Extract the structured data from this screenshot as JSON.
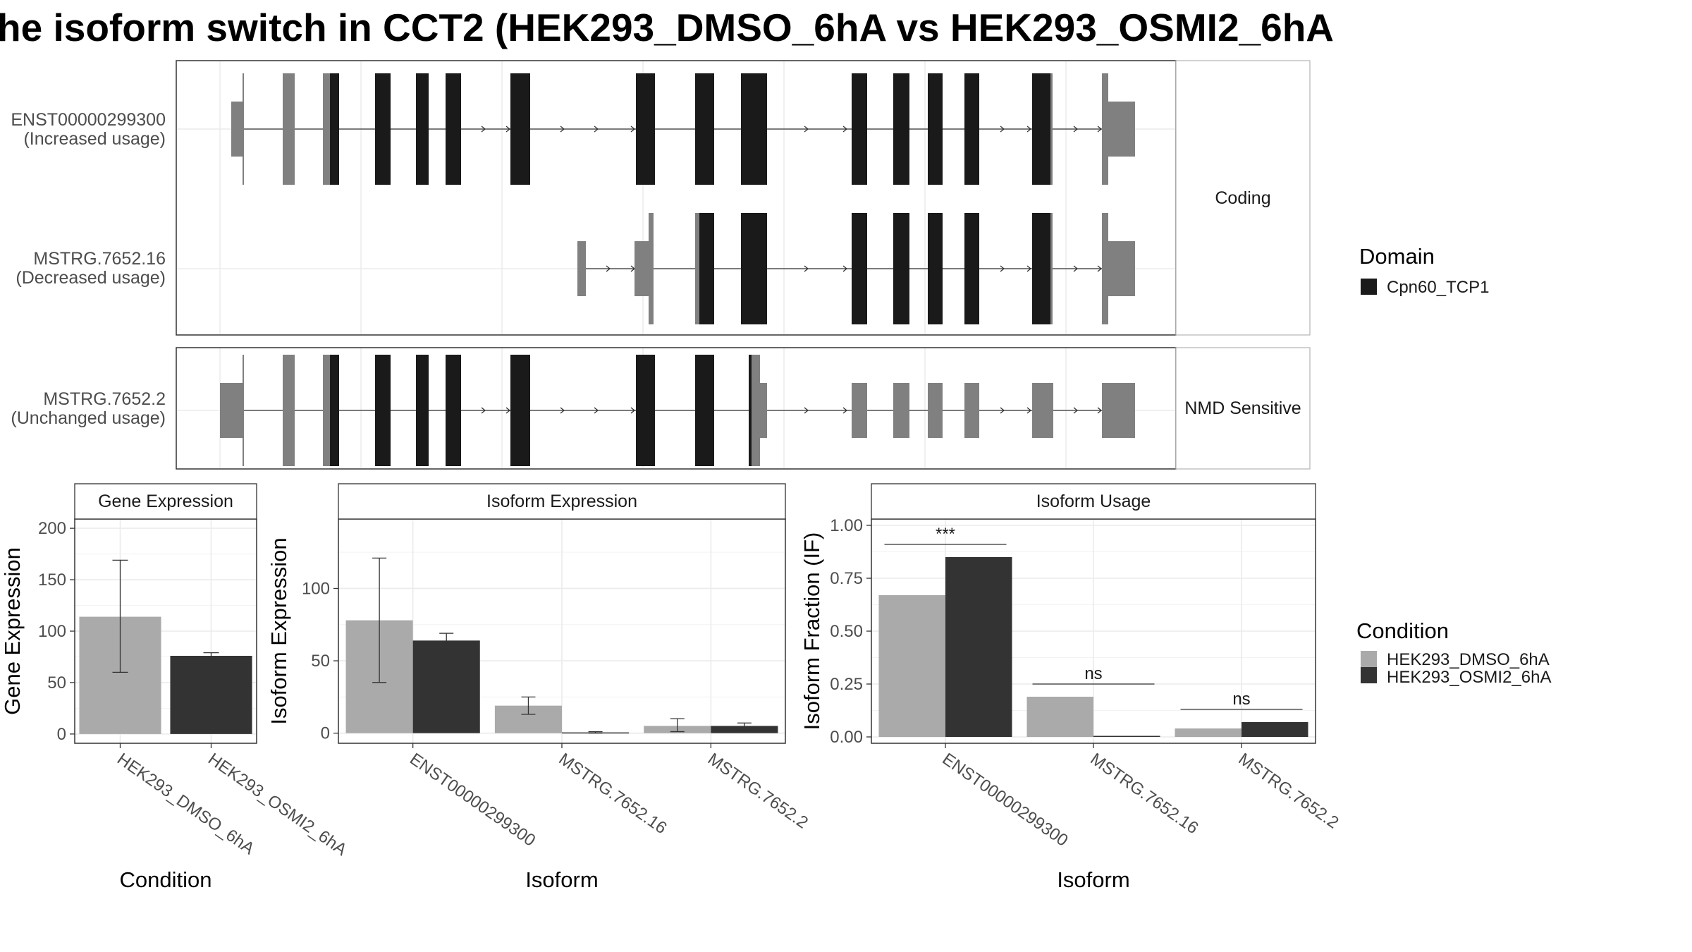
{
  "title": "he isoform switch in CCT2 (HEK293_DMSO_6hA vs HEK293_OSMI2_6hA",
  "colors": {
    "dmso": "#aaaaaa",
    "osmi": "#333333",
    "domain": "#1a1a1a",
    "exon": "#808080",
    "grid": "#ebebeb",
    "border": "#333333",
    "strip_fill": "#ffffff"
  },
  "structure": {
    "facets": [
      {
        "label": "Coding",
        "rows": [
          {
            "id": "ENST00000299300",
            "usage": "(Increased usage)"
          },
          {
            "id": "MSTRG.7652.16",
            "usage": "(Decreased usage)"
          }
        ]
      },
      {
        "label": "NMD Sensitive",
        "rows": [
          {
            "id": "MSTRG.7652.2",
            "usage": "(Unchanged usage)"
          }
        ]
      }
    ]
  },
  "legend_domain": {
    "title": "Domain",
    "items": [
      "Cpn60_TCP1"
    ]
  },
  "legend_condition": {
    "title": "Condition",
    "items": [
      "HEK293_DMSO_6hA",
      "HEK293_OSMI2_6hA"
    ]
  },
  "chart_data": [
    {
      "type": "bar",
      "title": "Gene Expression",
      "xlabel": "Condition",
      "ylabel": "Gene Expression",
      "categories": [
        "HEK293_DMSO_6hA",
        "HEK293_OSMI2_6hA"
      ],
      "values": [
        114,
        76
      ],
      "error_low": [
        60,
        73
      ],
      "error_high": [
        169,
        79
      ],
      "yticks": [
        0,
        50,
        100,
        150,
        200
      ],
      "ylim": [
        -9,
        209
      ],
      "grid": true
    },
    {
      "type": "bar",
      "title": "Isoform Expression",
      "xlabel": "Isoform",
      "ylabel": "Isoform Expression",
      "categories": [
        "ENST00000299300",
        "MSTRG.7652.16",
        "MSTRG.7652.2"
      ],
      "series": [
        {
          "name": "HEK293_DMSO_6hA",
          "values": [
            78,
            19,
            5
          ],
          "error_low": [
            35,
            13,
            1
          ],
          "error_high": [
            121,
            25,
            10
          ]
        },
        {
          "name": "HEK293_OSMI2_6hA",
          "values": [
            64,
            0.5,
            5
          ],
          "error_low": [
            59,
            0,
            3
          ],
          "error_high": [
            69,
            1,
            7
          ]
        }
      ],
      "yticks": [
        0,
        50,
        100
      ],
      "ylim": [
        -7,
        148
      ],
      "grid": true
    },
    {
      "type": "bar",
      "title": "Isoform Usage",
      "xlabel": "Isoform",
      "ylabel": "Isoform Fraction (IF)",
      "categories": [
        "ENST00000299300",
        "MSTRG.7652.16",
        "MSTRG.7652.2"
      ],
      "series": [
        {
          "name": "HEK293_DMSO_6hA",
          "values": [
            0.67,
            0.19,
            0.04
          ]
        },
        {
          "name": "HEK293_OSMI2_6hA",
          "values": [
            0.85,
            0.005,
            0.07
          ]
        }
      ],
      "significance": [
        "***",
        "ns",
        "ns"
      ],
      "yticks": [
        "0.00",
        "0.25",
        "0.50",
        "0.75",
        "1.00"
      ],
      "ylim": [
        -0.03,
        1.03
      ],
      "grid": true
    }
  ]
}
